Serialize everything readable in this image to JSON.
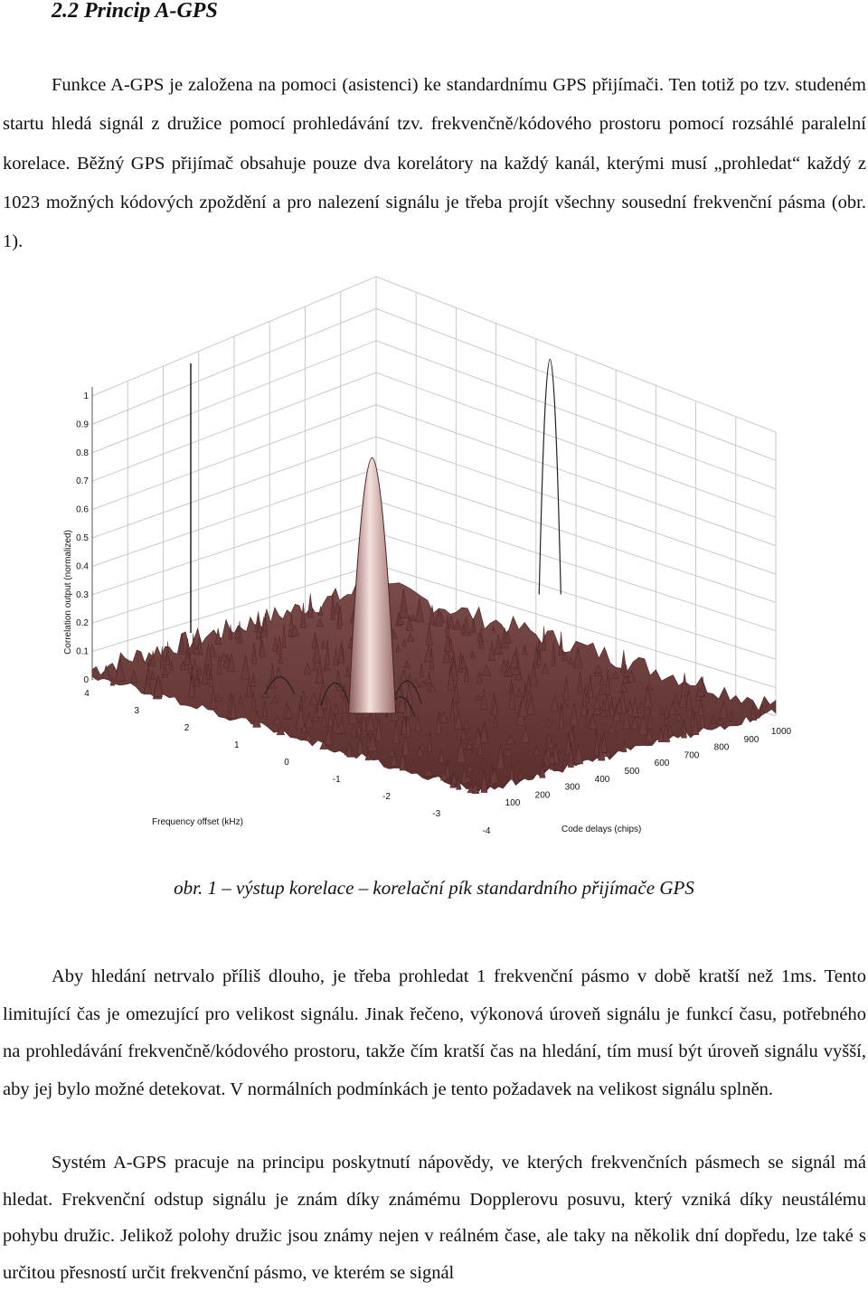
{
  "section": {
    "heading": "2.2 Princip A-GPS"
  },
  "paragraphs": {
    "p1": "Funkce A-GPS je založena na pomoci (asistenci) ke standardnímu GPS přijímači. Ten totiž po tzv. studeném startu hledá signál z družice pomocí prohledávání tzv. frekvenčně/kódového prostoru pomocí rozsáhlé paralelní korelace. Běžný GPS přijímač obsahuje pouze dva korelátory na každý kanál, kterými musí „prohledat“ každý z 1023 možných kódových zpoždění a pro nalezení signálu je třeba projít všechny sousední frekvenční pásma (obr. 1).",
    "p2": "Aby hledání netrvalo příliš dlouho, je třeba prohledat 1 frekvenční pásmo v době kratší než 1ms. Tento limitující čas je omezující pro velikost signálu. Jinak řečeno, výkonová úroveň signálu je funkcí času, potřebného na prohledávání frekvenčně/kódového prostoru, takže čím kratší čas na hledání, tím musí být úroveň signálu vyšší, aby jej bylo možné detekovat. V normálních podmínkách je tento požadavek na velikost signálu splněn.",
    "p3": "Systém A-GPS pracuje na principu poskytnutí nápovědy, ve kterých frekvenčních pásmech se signál má hledat. Frekvenční odstup signálu je znám díky známému Dopplerovu posuvu, který vzniká díky neustálému pohybu družic. Jelikož polohy družic jsou známy nejen v reálném čase, ale taky na několik dní dopředu, lze také s určitou přesností určit frekvenční pásmo, ve kterém se signál"
  },
  "figure": {
    "caption": "obr. 1 – výstup korelace – korelační pík standardního přijímače GPS",
    "surface_color": "#6b3b3b",
    "peak_color": "#f0d8d4"
  },
  "chart_data": {
    "type": "surface",
    "zlabel": "Correlation output (normalized)",
    "xlabel": "Frequency offset (kHz)",
    "ylabel": "Code delays (chips)",
    "z_ticks": [
      "0",
      "0.1",
      "0.2",
      "0.3",
      "0.4",
      "0.5",
      "0.6",
      "0.7",
      "0.8",
      "0.9",
      "1"
    ],
    "freq_ticks": [
      "4",
      "3",
      "2",
      "1",
      "0",
      "-1",
      "-2",
      "-3",
      "-4"
    ],
    "code_ticks": [
      "100",
      "200",
      "300",
      "400",
      "500",
      "600",
      "700",
      "800",
      "900",
      "1000"
    ],
    "zlim": [
      0,
      1
    ],
    "freq_range": [
      -4,
      4
    ],
    "code_range": [
      0,
      1000
    ],
    "noise_floor": 0.3,
    "peak": {
      "frequency_khz": 0,
      "code_delay_chips": 300,
      "value": 0.9
    }
  }
}
